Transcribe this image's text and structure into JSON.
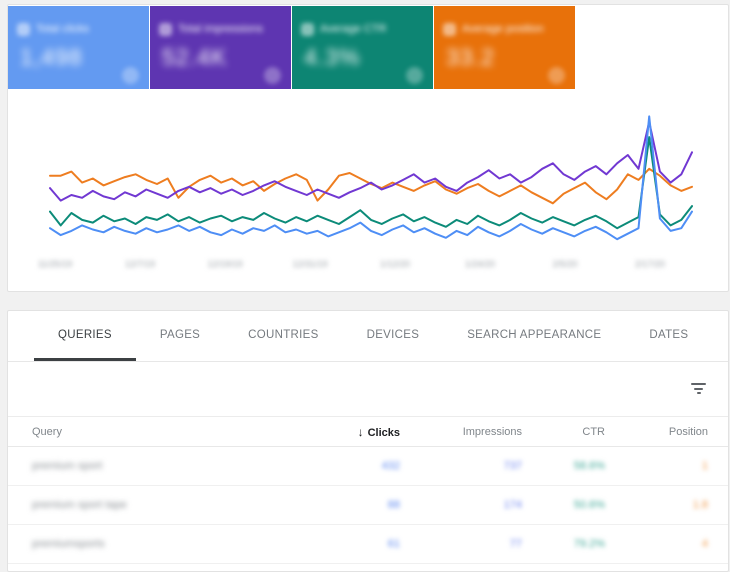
{
  "app": {
    "name": "Search Console Performance report"
  },
  "colors": {
    "page_background": "#f1f1f1",
    "panel_background": "#ffffff",
    "active_tab": "#3c4043",
    "inactive_tab": "#757a7f"
  },
  "summary_cards": [
    {
      "label": "Total clicks",
      "value": "1,498",
      "color": "#639af1",
      "checkbox_icon": "checkbox-checked-icon",
      "selected": true,
      "redacted": true
    },
    {
      "label": "Total impressions",
      "value": "52.4K",
      "color": "#5e35b1",
      "checkbox_icon": "checkbox-checked-icon",
      "selected": true,
      "redacted": true
    },
    {
      "label": "Average CTR",
      "value": "4.3%",
      "color": "#0d8573",
      "checkbox_icon": "checkbox-checked-icon",
      "selected": true,
      "redacted": true
    },
    {
      "label": "Average position",
      "value": "33.2",
      "color": "#e8710a",
      "checkbox_icon": "checkbox-checked-icon",
      "selected": true,
      "redacted": true
    }
  ],
  "chart_data": {
    "type": "line",
    "title": "",
    "xlabel": "",
    "ylabel": "",
    "ylim": [
      0,
      100
    ],
    "grid": false,
    "legend_position": "none",
    "x_labels_redacted": true,
    "x_labels": [
      "11/25/19",
      "12/7/19",
      "12/19/19",
      "12/31/19",
      "1/12/20",
      "1/24/20",
      "2/5/20",
      "2/17/20"
    ],
    "series": [
      {
        "name": "Position",
        "color": "#ee7d20",
        "values": [
          56,
          56,
          59,
          51,
          54,
          49,
          52,
          55,
          57,
          53,
          50,
          54,
          40,
          48,
          53,
          56,
          51,
          54,
          49,
          52,
          45,
          50,
          54,
          57,
          53,
          38,
          46,
          56,
          58,
          54,
          50,
          47,
          51,
          48,
          45,
          49,
          52,
          46,
          43,
          47,
          50,
          45,
          41,
          45,
          49,
          44,
          40,
          36,
          43,
          47,
          51,
          44,
          39,
          46,
          57,
          53,
          61,
          56,
          49,
          45,
          48
        ]
      },
      {
        "name": "Impressions",
        "color": "#7138d2",
        "values": [
          47,
          38,
          42,
          40,
          45,
          41,
          39,
          44,
          41,
          46,
          43,
          40,
          45,
          48,
          44,
          47,
          43,
          46,
          42,
          45,
          49,
          52,
          48,
          45,
          42,
          46,
          43,
          40,
          44,
          47,
          51,
          46,
          49,
          53,
          57,
          51,
          54,
          48,
          45,
          51,
          55,
          60,
          54,
          57,
          51,
          55,
          61,
          65,
          57,
          53,
          59,
          63,
          57,
          65,
          71,
          61,
          95,
          59,
          51,
          57,
          73
        ]
      },
      {
        "name": "CTR",
        "color": "#0c8b79",
        "values": [
          30,
          20,
          29,
          24,
          22,
          27,
          23,
          25,
          21,
          26,
          24,
          28,
          23,
          26,
          22,
          25,
          27,
          23,
          26,
          24,
          29,
          25,
          22,
          26,
          23,
          27,
          24,
          21,
          26,
          31,
          24,
          21,
          25,
          28,
          23,
          26,
          22,
          19,
          24,
          21,
          27,
          23,
          20,
          24,
          29,
          25,
          22,
          26,
          23,
          20,
          24,
          27,
          23,
          18,
          22,
          26,
          84,
          28,
          20,
          24,
          34
        ]
      },
      {
        "name": "Clicks",
        "color": "#4e8ef5",
        "values": [
          18,
          13,
          16,
          20,
          17,
          15,
          19,
          16,
          14,
          18,
          15,
          17,
          20,
          16,
          19,
          15,
          13,
          17,
          14,
          18,
          16,
          20,
          15,
          17,
          14,
          16,
          12,
          15,
          18,
          22,
          16,
          13,
          17,
          20,
          15,
          18,
          14,
          11,
          16,
          13,
          19,
          15,
          12,
          16,
          21,
          17,
          14,
          18,
          15,
          12,
          16,
          19,
          15,
          10,
          14,
          18,
          99,
          25,
          16,
          18,
          30
        ]
      }
    ]
  },
  "tabs": [
    {
      "label": "QUERIES",
      "active": true
    },
    {
      "label": "PAGES",
      "active": false
    },
    {
      "label": "COUNTRIES",
      "active": false
    },
    {
      "label": "DEVICES",
      "active": false
    },
    {
      "label": "SEARCH APPEARANCE",
      "active": false
    },
    {
      "label": "DATES",
      "active": false
    }
  ],
  "filter_bar": {
    "icon": "filter-list-icon"
  },
  "table": {
    "columns": [
      {
        "label": "Query",
        "align": "left",
        "sorted": false
      },
      {
        "label": "Clicks",
        "align": "right",
        "sorted": "desc",
        "sort_icon": "sort-desc-arrow-icon"
      },
      {
        "label": "Impressions",
        "align": "right",
        "sorted": false
      },
      {
        "label": "CTR",
        "align": "right",
        "sorted": false
      },
      {
        "label": "Position",
        "align": "right",
        "sorted": false
      }
    ],
    "value_colors": {
      "query": "#8a8f94",
      "clicks": "#5b87f0",
      "impressions": "#6b82ee",
      "ctr": "#3da796",
      "position": "#f09a4a"
    },
    "rows_redacted": true,
    "rows": [
      {
        "query": "premium sport",
        "clicks": "432",
        "impressions": "737",
        "ctr": "58.6%",
        "position": "1"
      },
      {
        "query": "premium sport tape",
        "clicks": "88",
        "impressions": "174",
        "ctr": "50.6%",
        "position": "1.8"
      },
      {
        "query": "premiumsports",
        "clicks": "61",
        "impressions": "77",
        "ctr": "79.2%",
        "position": "4"
      }
    ]
  }
}
